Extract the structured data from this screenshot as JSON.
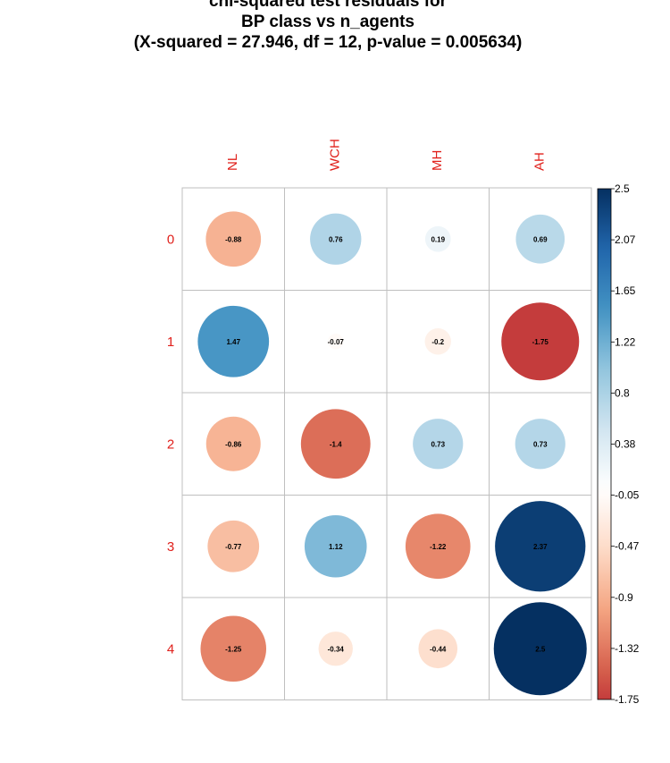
{
  "chart_data": {
    "type": "heatmap",
    "style": "corrplot-circle",
    "title": [
      "chi-squared test residuals for",
      "BP class vs n_agents",
      "(X-squared = 27.946, df = 12, p-value = 0.005634)"
    ],
    "columns": [
      "NL",
      "WCH",
      "MH",
      "AH"
    ],
    "rows": [
      "0",
      "1",
      "2",
      "3",
      "4"
    ],
    "values": [
      [
        -0.88,
        0.76,
        0.19,
        0.69
      ],
      [
        1.47,
        -0.07,
        -0.2,
        -1.75
      ],
      [
        -0.86,
        -1.4,
        0.73,
        0.73
      ],
      [
        -0.77,
        1.12,
        -1.22,
        2.37
      ],
      [
        -1.25,
        -0.34,
        -0.44,
        2.5
      ]
    ],
    "value_labels": [
      [
        "-0.88",
        "0.76",
        "0.19",
        "0.69"
      ],
      [
        "1.47",
        "-0.07",
        "-0.2",
        "-1.75"
      ],
      [
        "-0.86",
        "-1.4",
        "0.73",
        "0.73"
      ],
      [
        "-0.77",
        "1.12",
        "-1.22",
        "2.37"
      ],
      [
        "-1.25",
        "-0.34",
        "-0.44",
        "2.5"
      ]
    ],
    "color_range": [
      -1.75,
      2.5
    ],
    "colorbar_ticks": [
      "2.5",
      "2.07",
      "1.65",
      "1.22",
      "0.8",
      "0.38",
      "-0.05",
      "-0.47",
      "-0.9",
      "-1.32",
      "-1.75"
    ],
    "colors": {
      "negative_max": "#b2182b",
      "zero": "#ffffff",
      "positive_max": "#053061",
      "label_text": "#e0201b",
      "grid": "#bfbfbf"
    }
  }
}
